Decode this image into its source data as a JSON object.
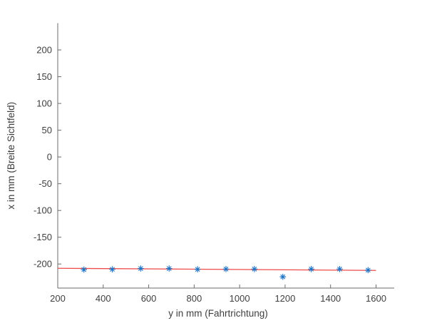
{
  "chart_data": {
    "type": "scatter",
    "title": "",
    "xlabel": "y in mm (Fahrtrichtung)",
    "ylabel": "x in mm (Breite Sichtfeld)",
    "xlim": [
      200,
      1680
    ],
    "ylim": [
      -245,
      250
    ],
    "xticks": [
      200,
      400,
      600,
      800,
      1000,
      1200,
      1400,
      1600
    ],
    "yticks": [
      -200,
      -150,
      -100,
      -50,
      0,
      50,
      100,
      150,
      200
    ],
    "grid": false,
    "legend": null,
    "box": false,
    "tick_direction": "in",
    "colors": {
      "spine": "#6b6b6b",
      "tick_text": "#3e3e3e",
      "marker_blue": "#1f74c4",
      "fit_red": "#ee4b4b"
    },
    "series": [
      {
        "name": "measurement-points",
        "type": "scatter",
        "marker": "asterisk",
        "color": "#1f74c4",
        "x": [
          315,
          440,
          565,
          690,
          815,
          940,
          1065,
          1190,
          1315,
          1440,
          1565
        ],
        "y": [
          -210.5,
          -210,
          -208.5,
          -208.5,
          -210,
          -209.5,
          -209.5,
          -224,
          -209.5,
          -209.5,
          -211.5
        ]
      },
      {
        "name": "fit-line",
        "type": "line",
        "color": "#ee4b4b",
        "x": [
          200,
          1600
        ],
        "y": [
          -208,
          -212
        ]
      }
    ]
  }
}
